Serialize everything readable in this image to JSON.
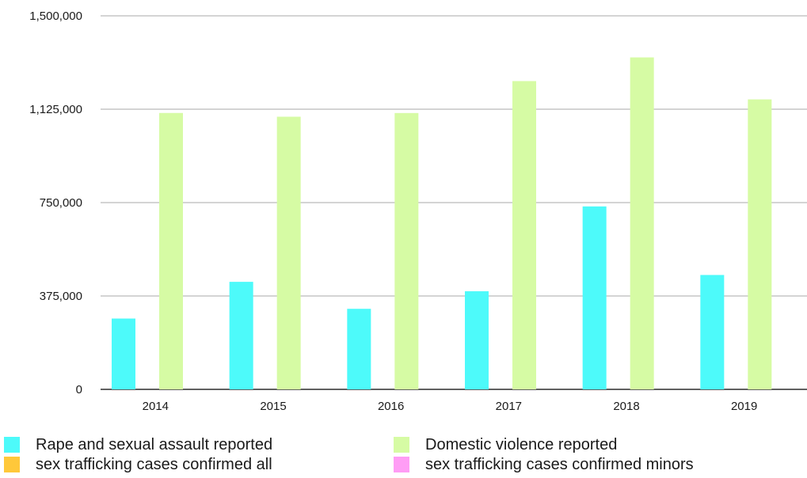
{
  "chart_data": {
    "type": "bar",
    "categories": [
      "2014",
      "2015",
      "2016",
      "2017",
      "2018",
      "2019"
    ],
    "series": [
      {
        "name": "Rape and sexual assault reported",
        "color": "#4dfafa",
        "values": [
          284350,
          431840,
          323450,
          393980,
          734630,
          459310
        ]
      },
      {
        "name": "sex trafficking cases confirmed all",
        "color": "#ffc83a",
        "values": [
          0,
          0,
          0,
          0,
          0,
          0
        ]
      },
      {
        "name": "Domestic violence reported",
        "color": "#d6fba4",
        "values": [
          1109880,
          1094870,
          1109610,
          1237960,
          1333050,
          1164450
        ]
      },
      {
        "name": "sex trafficking cases confirmed minors",
        "color": "#ff9df5",
        "values": [
          0,
          0,
          0,
          0,
          0,
          0
        ]
      }
    ],
    "ylim": [
      0,
      1500000
    ],
    "yticks": [
      "0",
      "375,000",
      "750,000",
      "1,125,000",
      "1,500,000"
    ],
    "grid": true,
    "legend_position": "bottom"
  },
  "legend": [
    {
      "label": "Rape and sexual assault reported",
      "color": "#4dfafa"
    },
    {
      "label": "Domestic violence reported",
      "color": "#d6fba4"
    },
    {
      "label": "sex trafficking cases confirmed all",
      "color": "#ffc83a"
    },
    {
      "label": "sex trafficking cases confirmed minors",
      "color": "#ff9df5"
    }
  ]
}
